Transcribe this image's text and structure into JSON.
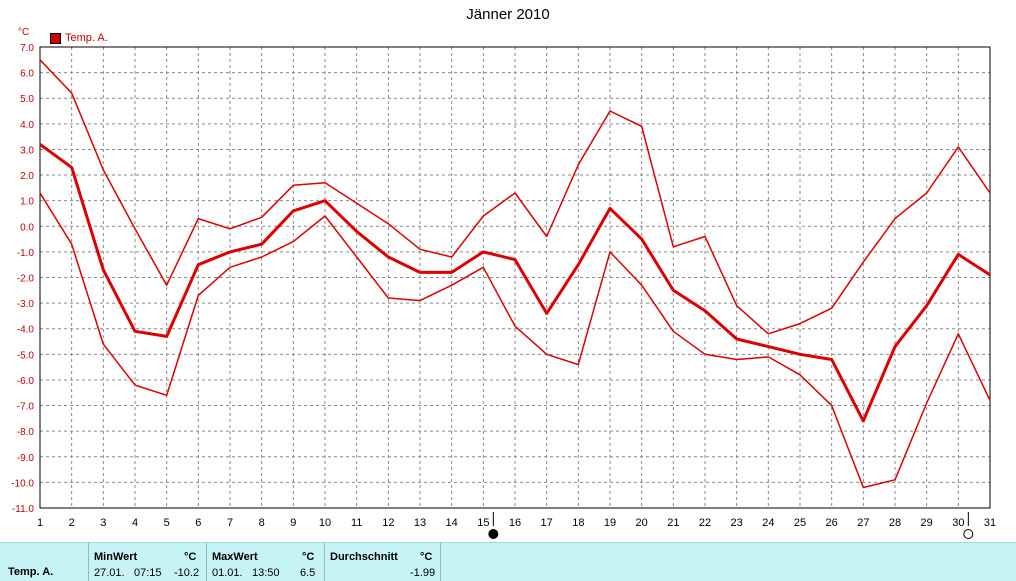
{
  "chart_data": {
    "type": "line",
    "title": "Jänner 2010",
    "unit": "°C",
    "legend": [
      "Temp. A."
    ],
    "legend_position": "top-left",
    "grid": true,
    "ylim": [
      -11.0,
      7.0
    ],
    "y_ticks": [
      "7.0",
      "6.0",
      "5.0",
      "4.0",
      "3.0",
      "2.0",
      "1.0",
      "0.0",
      "-1.0",
      "-2.0",
      "-3.0",
      "-4.0",
      "-5.0",
      "-6.0",
      "-7.0",
      "-8.0",
      "-9.0",
      "-10.0",
      "-11.0"
    ],
    "x": [
      1,
      2,
      3,
      4,
      5,
      6,
      7,
      8,
      9,
      10,
      11,
      12,
      13,
      14,
      15,
      16,
      17,
      18,
      19,
      20,
      21,
      22,
      23,
      24,
      25,
      26,
      27,
      28,
      29,
      30,
      31
    ],
    "x_ticks": [
      "1",
      "2",
      "3",
      "4",
      "5",
      "6",
      "7",
      "8",
      "9",
      "10",
      "11",
      "12",
      "13",
      "14",
      "15",
      "16",
      "17",
      "18",
      "19",
      "20",
      "21",
      "22",
      "23",
      "24",
      "25",
      "26",
      "27",
      "28",
      "29",
      "30",
      "31"
    ],
    "series": [
      {
        "role": "max",
        "values": [
          6.5,
          5.2,
          2.2,
          -0.1,
          -2.3,
          0.3,
          -0.1,
          0.35,
          1.6,
          1.7,
          0.9,
          0.1,
          -0.9,
          -1.2,
          0.4,
          1.3,
          -0.4,
          2.4,
          4.5,
          3.9,
          -0.8,
          -0.4,
          -3.1,
          -4.2,
          -3.8,
          -3.2,
          -1.4,
          0.3,
          1.3,
          3.1,
          1.3
        ]
      },
      {
        "role": "avg",
        "values": [
          3.2,
          2.3,
          -1.7,
          -4.1,
          -4.3,
          -1.5,
          -1.0,
          -0.7,
          0.6,
          1.0,
          -0.2,
          -1.2,
          -1.8,
          -1.8,
          -1.0,
          -1.3,
          -3.4,
          -1.5,
          0.7,
          -0.5,
          -2.5,
          -3.3,
          -4.4,
          -4.7,
          -5.0,
          -5.2,
          -7.6,
          -4.7,
          -3.1,
          -1.1,
          -1.9
        ]
      },
      {
        "role": "min",
        "values": [
          1.3,
          -0.7,
          -4.6,
          -6.2,
          -6.6,
          -2.7,
          -1.6,
          -1.2,
          -0.6,
          0.4,
          -1.2,
          -2.8,
          -2.9,
          -2.3,
          -1.6,
          -3.9,
          -5.0,
          -5.4,
          -1.0,
          -2.3,
          -4.1,
          -5.0,
          -5.2,
          -5.1,
          -5.8,
          -7.0,
          -10.2,
          -9.9,
          -6.9,
          -4.2,
          -6.8
        ]
      }
    ],
    "markers": [
      {
        "x": 15,
        "symbol": "full-moon-filled"
      },
      {
        "x": 30,
        "symbol": "new-moon-open"
      }
    ],
    "colors": {
      "line": "#dd0000",
      "grid": "#8a8a8a",
      "tick_y": "#c00000",
      "stats_bg": "#c6f4f4"
    }
  },
  "stats": {
    "series_name": "Temp. A.",
    "min": {
      "header": "MinWert",
      "unit": "°C",
      "date": "27.01.",
      "time": "07:15",
      "value": "-10.2"
    },
    "max": {
      "header": "MaxWert",
      "unit": "°C",
      "date": "01.01.",
      "time": "13:50",
      "value": "6.5"
    },
    "avg": {
      "header": "Durchschnitt",
      "unit": "°C",
      "value": "-1.99"
    }
  }
}
